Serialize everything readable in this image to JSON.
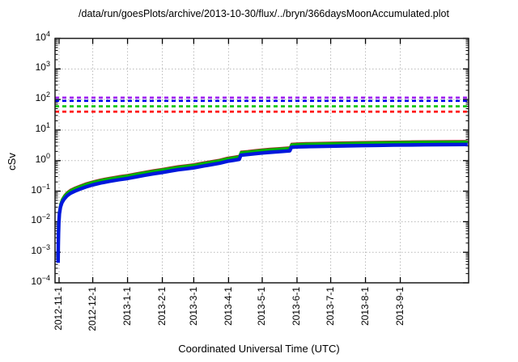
{
  "chart_data": {
    "type": "line",
    "title": "/data/run/goesPlots/archive/2013-10-30/flux/../bryn/366daysMoonAccumulated.plot",
    "xlabel": "Coordinated Universal Time (UTC)",
    "ylabel": "cSv",
    "y_scale": "log",
    "ylim": [
      0.0001,
      10000
    ],
    "y_tick_exponents": [
      4,
      3,
      2,
      1,
      0,
      -1,
      -2,
      -3,
      -4
    ],
    "x_ticks": [
      {
        "label": "2012-11-1",
        "day": 2
      },
      {
        "label": "2012-12-1",
        "day": 32
      },
      {
        "label": "2013-1-1",
        "day": 63
      },
      {
        "label": "2013-2-1",
        "day": 94
      },
      {
        "label": "2013-3-1",
        "day": 122
      },
      {
        "label": "2013-4-1",
        "day": 153
      },
      {
        "label": "2013-5-1",
        "day": 183
      },
      {
        "label": "2013-6-1",
        "day": 214
      },
      {
        "label": "2013-7-1",
        "day": 244
      },
      {
        "label": "2013-8-1",
        "day": 275
      },
      {
        "label": "2013-9-1",
        "day": 306
      }
    ],
    "x_range_days": [
      -1.6,
      366.9
    ],
    "grid": "dotted, at decades and month ticks",
    "legend": "none",
    "thresholds": [
      {
        "name": "limit-purple",
        "value": 115,
        "color": "#a020f0"
      },
      {
        "name": "limit-blue",
        "value": 90,
        "color": "#0000ee"
      },
      {
        "name": "limit-green",
        "value": 60,
        "color": "#00c400"
      },
      {
        "name": "limit-red",
        "value": 40,
        "color": "#ff0000"
      }
    ],
    "base_points_day_csv": [
      [
        1.15,
        0.00045
      ],
      [
        1.3,
        0.0015
      ],
      [
        1.5,
        0.004
      ],
      [
        1.8,
        0.009
      ],
      [
        2.3,
        0.018
      ],
      [
        3.2,
        0.03
      ],
      [
        4.5,
        0.042
      ],
      [
        6.5,
        0.055
      ],
      [
        9,
        0.07
      ],
      [
        12,
        0.085
      ],
      [
        16,
        0.1
      ],
      [
        21,
        0.118
      ],
      [
        26,
        0.138
      ],
      [
        32,
        0.16
      ],
      [
        39,
        0.185
      ],
      [
        47,
        0.21
      ],
      [
        55,
        0.235
      ],
      [
        63,
        0.26
      ],
      [
        71,
        0.295
      ],
      [
        78,
        0.33
      ],
      [
        86,
        0.37
      ],
      [
        94,
        0.41
      ],
      [
        101,
        0.455
      ],
      [
        108,
        0.5
      ],
      [
        115,
        0.54
      ],
      [
        122,
        0.58
      ],
      [
        130,
        0.66
      ],
      [
        137,
        0.73
      ],
      [
        145,
        0.82
      ],
      [
        152,
        0.95
      ],
      [
        158,
        1.03
      ],
      [
        162.5,
        1.1
      ],
      [
        164,
        1.5
      ],
      [
        170,
        1.58
      ],
      [
        176,
        1.67
      ],
      [
        183,
        1.78
      ],
      [
        190,
        1.87
      ],
      [
        197,
        1.95
      ],
      [
        203,
        2.02
      ],
      [
        207.5,
        2.08
      ],
      [
        209,
        2.72
      ],
      [
        214,
        2.8
      ],
      [
        222,
        2.86
      ],
      [
        230,
        2.9
      ],
      [
        244,
        2.97
      ],
      [
        258,
        3.03
      ],
      [
        272,
        3.09
      ],
      [
        286,
        3.15
      ],
      [
        300,
        3.2
      ],
      [
        314,
        3.25
      ],
      [
        328,
        3.29
      ],
      [
        342,
        3.32
      ],
      [
        355,
        3.34
      ],
      [
        366,
        3.36
      ]
    ],
    "series": [
      {
        "name": "accumulated-red",
        "color": "#a03028",
        "width": 2,
        "factor_of_base": 1.33
      },
      {
        "name": "accumulated-green",
        "color": "#00b400",
        "width": 3.2,
        "factor_of_base": 1.22
      },
      {
        "name": "accumulated-blue",
        "color": "#0018dc",
        "width": 4.4,
        "factor_of_base": 1.0
      }
    ],
    "events": [
      {
        "day": 163,
        "description": "step increase"
      },
      {
        "day": 208,
        "description": "step increase"
      }
    ]
  }
}
